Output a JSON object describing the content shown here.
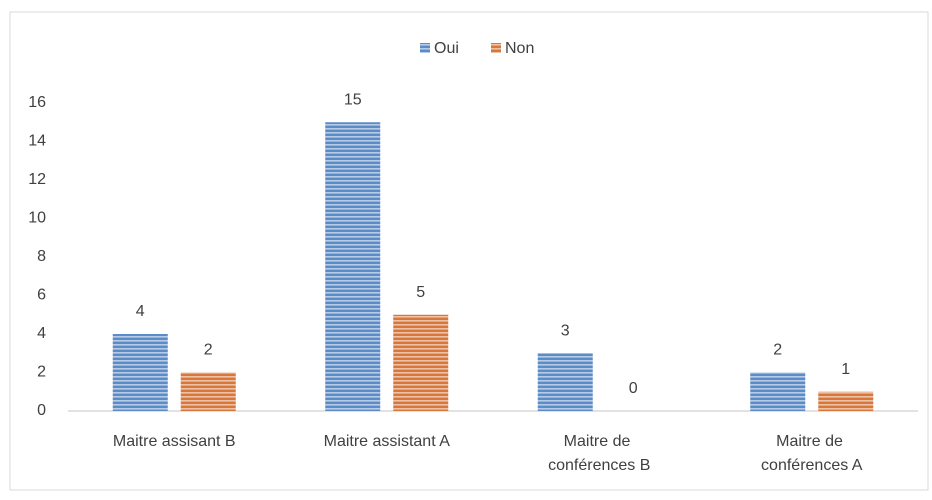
{
  "chart_data": {
    "type": "bar",
    "categories": [
      "Maitre assisant B",
      "Maitre assistant A",
      "Maitre de conférences B",
      "Maitre de conférences A"
    ],
    "series": [
      {
        "name": "Oui",
        "color": "#5b8cc8",
        "values": [
          4,
          15,
          3,
          2
        ]
      },
      {
        "name": "Non",
        "color": "#d9773a",
        "values": [
          2,
          5,
          0,
          1
        ]
      }
    ],
    "ylim": [
      0,
      16
    ],
    "yticks": [
      0,
      2,
      4,
      6,
      8,
      10,
      12,
      14,
      16
    ],
    "legend": "top",
    "grid": false
  }
}
